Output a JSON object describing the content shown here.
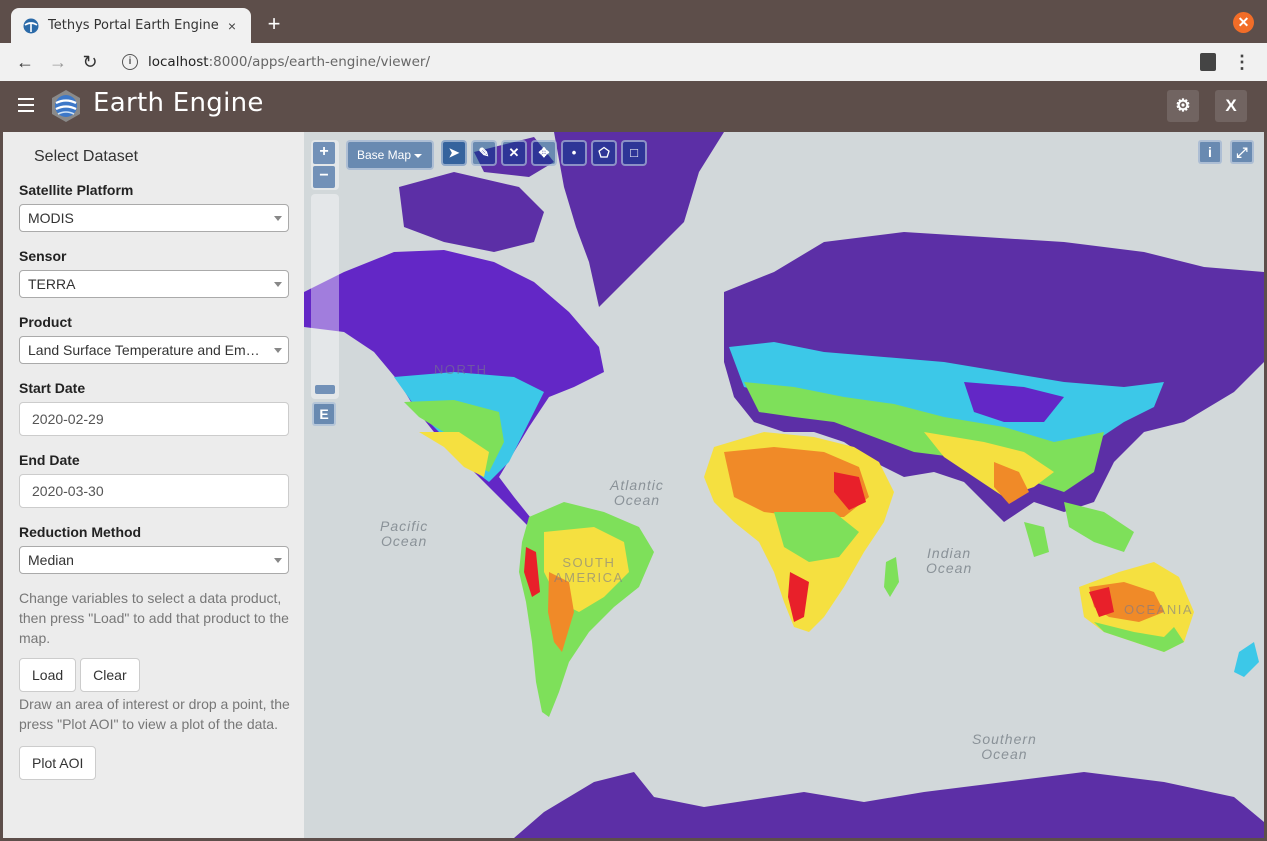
{
  "browser": {
    "tab_title": "Tethys Portal Earth Engine",
    "tab_close": "×",
    "new_tab": "+",
    "url_host": "localhost",
    "url_path": ":8000/apps/earth-engine/viewer/",
    "info_icon_glyph": "i",
    "back_glyph": "←",
    "forward_glyph": "→",
    "reload_glyph": "↻",
    "menu_glyph": "⋮",
    "window_close": "✕"
  },
  "header": {
    "title": "Earth Engine",
    "settings_glyph": "⚙",
    "close_label": "X"
  },
  "sidebar": {
    "title": "Select Dataset",
    "platform_label": "Satellite Platform",
    "platform_value": "MODIS",
    "sensor_label": "Sensor",
    "sensor_value": "TERRA",
    "product_label": "Product",
    "product_value": "Land Surface Temperature and Emissivity",
    "start_label": "Start Date",
    "start_value": "2020-02-29",
    "end_label": "End Date",
    "end_value": "2020-03-30",
    "reduction_label": "Reduction Method",
    "reduction_value": "Median",
    "help_load": "Change variables to select a data product, then press \"Load\" to add that product to the map.",
    "load_button": "Load",
    "clear_button": "Clear",
    "help_plot": "Draw an area of interest or drop a point, the press \"Plot AOI\" to view a plot of the data.",
    "plot_button": "Plot AOI"
  },
  "map": {
    "zoom_in": "+",
    "zoom_out": "−",
    "e_button": "E",
    "basemap_label": "Base Map",
    "tools": [
      "➤",
      "✎",
      "✕",
      "✥",
      "•",
      "⬠",
      "□"
    ],
    "info_button": "i",
    "fullscreen_button": "⤢",
    "oceans": {
      "atlantic": "Atlantic\nOcean",
      "pacific": "Pacific\nOcean",
      "indian": "Indian\nOcean",
      "southern": "Southern\nOcean"
    },
    "continents": {
      "north_america": "NORTH",
      "south_america": "SOUTH\nAMERICA",
      "oceania": "OCEANIA"
    },
    "colors": {
      "cold": "#5c2fa6",
      "cool": "#3cc8e8",
      "mid": "#7ee05a",
      "warm": "#f5e040",
      "hot": "#f08a28",
      "hottest": "#e8202a"
    }
  }
}
